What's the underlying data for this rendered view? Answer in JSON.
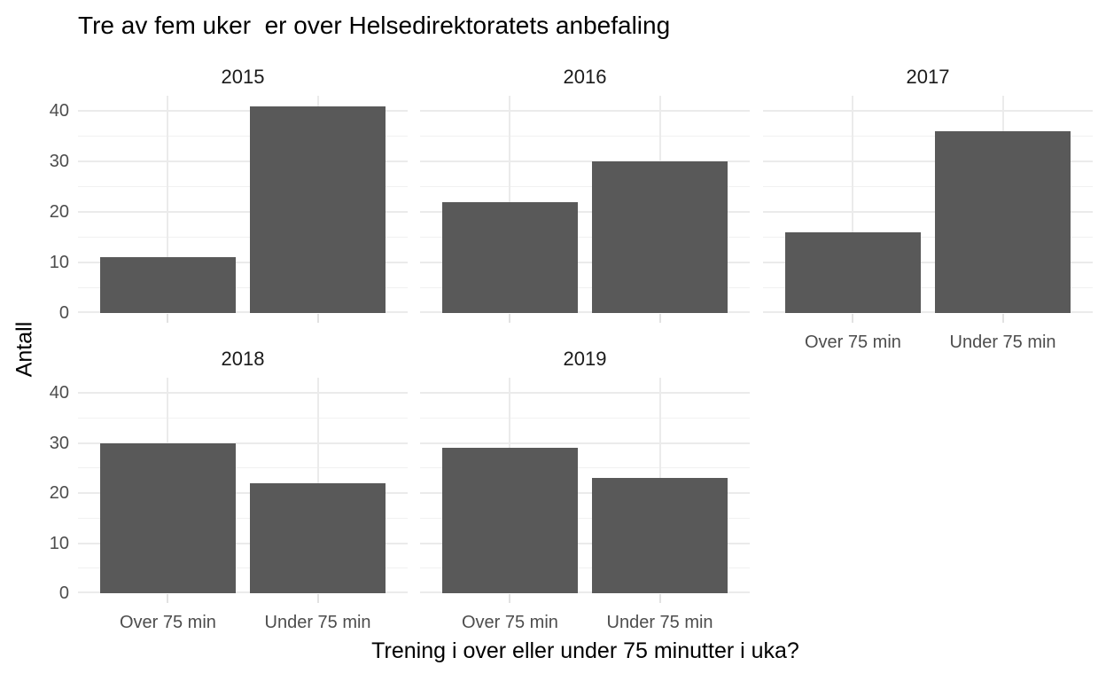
{
  "chart_data": {
    "type": "bar",
    "title": "Tre av fem uker  er over Helsedirektoratets anbefaling",
    "xlabel": "Trening i over eller under 75 minutter i uka?",
    "ylabel": "Antall",
    "categories": [
      "Over 75 min",
      "Under 75 min"
    ],
    "facets": [
      {
        "label": "2015",
        "values": [
          11,
          41
        ]
      },
      {
        "label": "2016",
        "values": [
          22,
          30
        ]
      },
      {
        "label": "2017",
        "values": [
          16,
          36
        ]
      },
      {
        "label": "2018",
        "values": [
          30,
          22
        ]
      },
      {
        "label": "2019",
        "values": [
          29,
          23
        ]
      }
    ],
    "y_ticks": [
      0,
      10,
      20,
      30,
      40
    ],
    "y_minor_ticks": [
      5,
      15,
      25,
      35
    ],
    "ylim": [
      0,
      43.05
    ],
    "grid": "on",
    "legend_position": "none",
    "colors": {
      "bar_fill": "#595959",
      "grid_major": "#EBEBEB",
      "grid_minor": "#F1F1F1",
      "axis_tick": "#E2E2E2",
      "axis_text": "#4D4D4D",
      "strip_text": "#1A1A1A",
      "title_text": "#000000"
    }
  }
}
